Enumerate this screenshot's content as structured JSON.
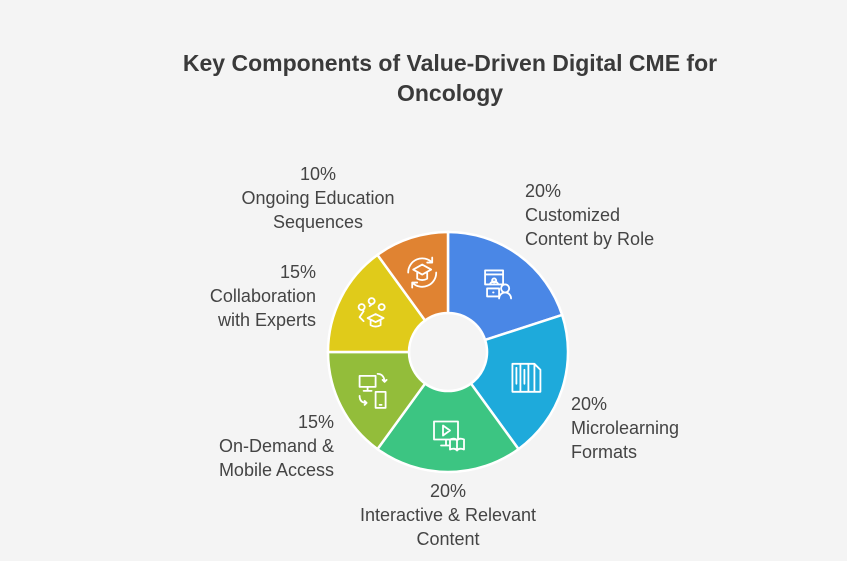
{
  "chart_data": {
    "type": "pie",
    "donut": true,
    "title": "Key Components of Value-Driven Digital CME for Oncology",
    "start": "top, clockwise",
    "slices": [
      {
        "label": "Customized Content by Role",
        "value": 20,
        "pct": "20%",
        "color": "#4a87e6",
        "icon": "user-content-icon"
      },
      {
        "label": "Microlearning Formats",
        "value": 20,
        "pct": "20%",
        "color": "#1eaadb",
        "icon": "books-icon"
      },
      {
        "label": "Interactive & Relevant Content",
        "value": 20,
        "pct": "20%",
        "color": "#3cc582",
        "icon": "video-book-icon"
      },
      {
        "label": "On-Demand & Mobile Access",
        "value": 15,
        "pct": "15%",
        "color": "#93bd3a",
        "icon": "devices-sync-icon"
      },
      {
        "label": "Collaboration with Experts",
        "value": 15,
        "pct": "15%",
        "color": "#e0cb1a",
        "icon": "expert-network-icon"
      },
      {
        "label": "Ongoing Education Sequences",
        "value": 10,
        "pct": "10%",
        "color": "#e08332",
        "icon": "cycle-graduation-icon"
      }
    ]
  }
}
